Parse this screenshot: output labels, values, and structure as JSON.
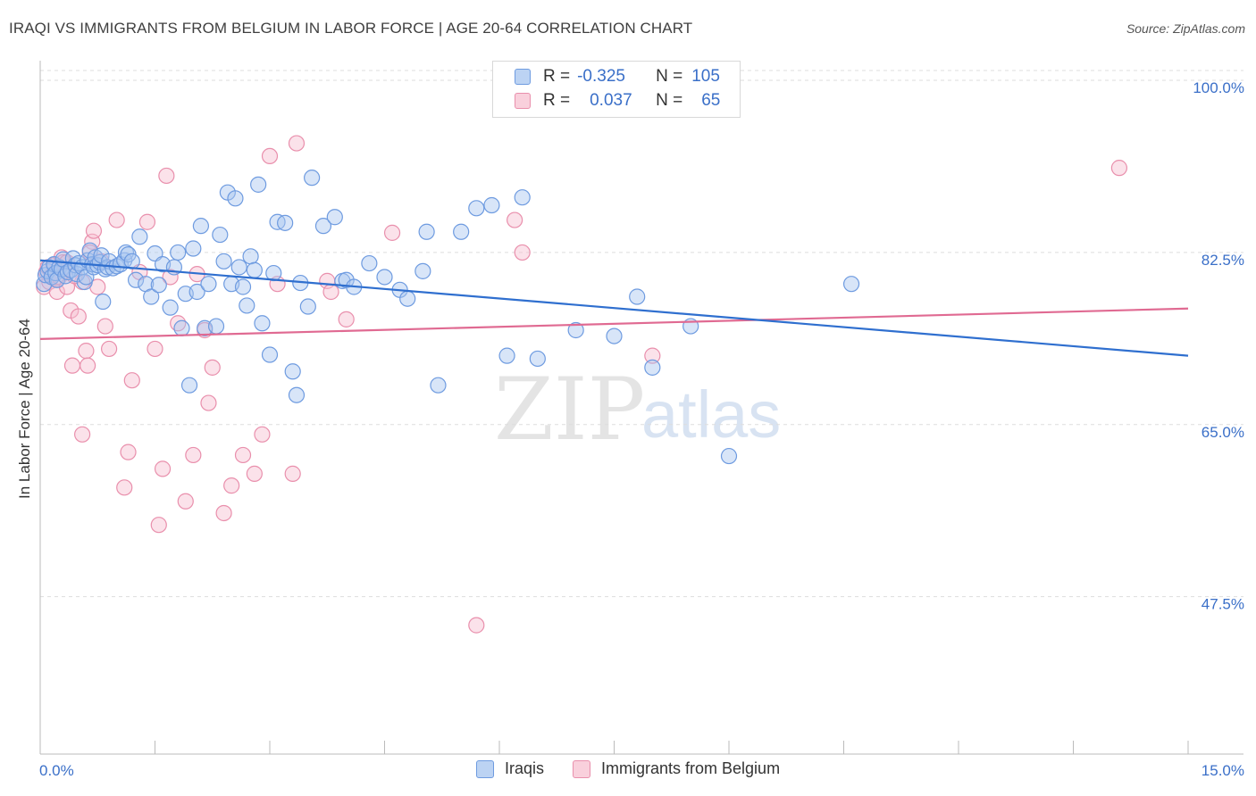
{
  "header": {
    "title": "IRAQI VS IMMIGRANTS FROM BELGIUM IN LABOR FORCE | AGE 20-64 CORRELATION CHART",
    "source": "Source: ZipAtlas.com"
  },
  "legend_top": {
    "rows": [
      {
        "r_label": "R =",
        "r_value": "-0.325",
        "n_label": "N =",
        "n_value": "105"
      },
      {
        "r_label": "R =",
        "r_value": "0.037",
        "n_label": "N =",
        "n_value": "65"
      }
    ]
  },
  "legend_bottom": {
    "items": [
      "Iraqis",
      "Immigrants from Belgium"
    ]
  },
  "watermark": {
    "zip": "ZIP",
    "atlas": "atlas"
  },
  "colors": {
    "iraqi_fill": "#a9c6ef",
    "iraqi_stroke": "#6e9be0",
    "iraqi_line": "#2f6fcf",
    "belgium_fill": "#f6bfd0",
    "belgium_stroke": "#e98fac",
    "belgium_line": "#e06a92",
    "tick_text": "#3a6fc8",
    "grid": "#dddddd"
  },
  "chart_data": {
    "type": "scatter",
    "title": "IRAQI VS IMMIGRANTS FROM BELGIUM IN LABOR FORCE | AGE 20-64 CORRELATION CHART",
    "xlabel": "",
    "ylabel": "In Labor Force | Age 20-64",
    "xlim": [
      0,
      15
    ],
    "ylim": [
      31.5,
      102
    ],
    "x_tick_labels": [
      "0.0%",
      "15.0%"
    ],
    "y_ticks": [
      100,
      82.5,
      65,
      47.5
    ],
    "y_tick_labels": [
      "100.0%",
      "82.5%",
      "65.0%",
      "47.5%"
    ],
    "series": [
      {
        "name": "Iraqis",
        "r": -0.325,
        "n": 105,
        "trend": {
          "x": [
            0,
            15
          ],
          "y": [
            81.7,
            72.0
          ]
        },
        "points": [
          [
            0.05,
            79.3
          ],
          [
            0.07,
            80.2
          ],
          [
            0.1,
            80.6
          ],
          [
            0.12,
            81.0
          ],
          [
            0.15,
            80.0
          ],
          [
            0.18,
            81.3
          ],
          [
            0.2,
            80.4
          ],
          [
            0.22,
            79.7
          ],
          [
            0.25,
            81.0
          ],
          [
            0.28,
            80.8
          ],
          [
            0.3,
            81.8
          ],
          [
            0.33,
            80.1
          ],
          [
            0.36,
            80.5
          ],
          [
            0.4,
            80.7
          ],
          [
            0.43,
            81.9
          ],
          [
            0.46,
            81.2
          ],
          [
            0.48,
            80.3
          ],
          [
            0.5,
            81.4
          ],
          [
            0.55,
            81.0
          ],
          [
            0.58,
            79.5
          ],
          [
            0.6,
            80.0
          ],
          [
            0.62,
            81.7
          ],
          [
            0.65,
            82.7
          ],
          [
            0.68,
            81.3
          ],
          [
            0.7,
            81.0
          ],
          [
            0.72,
            82.0
          ],
          [
            0.75,
            81.2
          ],
          [
            0.78,
            81.5
          ],
          [
            0.8,
            82.2
          ],
          [
            0.82,
            77.5
          ],
          [
            0.85,
            80.8
          ],
          [
            0.88,
            81.0
          ],
          [
            0.9,
            81.6
          ],
          [
            0.95,
            80.9
          ],
          [
            1.0,
            81.1
          ],
          [
            1.05,
            81.3
          ],
          [
            1.1,
            81.7
          ],
          [
            1.12,
            82.5
          ],
          [
            1.15,
            82.3
          ],
          [
            1.2,
            81.6
          ],
          [
            1.25,
            79.7
          ],
          [
            1.3,
            84.1
          ],
          [
            1.38,
            79.3
          ],
          [
            1.45,
            78.0
          ],
          [
            1.5,
            82.4
          ],
          [
            1.55,
            79.2
          ],
          [
            1.6,
            81.3
          ],
          [
            1.7,
            76.9
          ],
          [
            1.75,
            81.0
          ],
          [
            1.8,
            82.5
          ],
          [
            1.85,
            74.8
          ],
          [
            1.9,
            78.3
          ],
          [
            1.95,
            69.0
          ],
          [
            2.0,
            82.9
          ],
          [
            2.05,
            78.5
          ],
          [
            2.1,
            85.2
          ],
          [
            2.15,
            74.8
          ],
          [
            2.2,
            79.3
          ],
          [
            2.3,
            75.0
          ],
          [
            2.35,
            84.3
          ],
          [
            2.4,
            81.6
          ],
          [
            2.45,
            88.6
          ],
          [
            2.5,
            79.3
          ],
          [
            2.55,
            88.0
          ],
          [
            2.6,
            81.0
          ],
          [
            2.65,
            79.0
          ],
          [
            2.7,
            77.1
          ],
          [
            2.75,
            82.1
          ],
          [
            2.8,
            80.7
          ],
          [
            2.85,
            89.4
          ],
          [
            2.9,
            75.3
          ],
          [
            3.0,
            72.1
          ],
          [
            3.05,
            80.4
          ],
          [
            3.1,
            85.6
          ],
          [
            3.2,
            85.5
          ],
          [
            3.3,
            70.4
          ],
          [
            3.35,
            68.0
          ],
          [
            3.4,
            79.4
          ],
          [
            3.5,
            77.0
          ],
          [
            3.55,
            90.1
          ],
          [
            3.7,
            85.2
          ],
          [
            3.85,
            86.1
          ],
          [
            3.95,
            79.6
          ],
          [
            4.0,
            79.7
          ],
          [
            4.1,
            79.0
          ],
          [
            4.3,
            81.4
          ],
          [
            4.5,
            80.0
          ],
          [
            4.7,
            78.7
          ],
          [
            4.8,
            77.8
          ],
          [
            5.0,
            80.6
          ],
          [
            5.05,
            84.6
          ],
          [
            5.2,
            69.0
          ],
          [
            5.5,
            84.6
          ],
          [
            5.7,
            87.0
          ],
          [
            5.9,
            87.3
          ],
          [
            6.1,
            72.0
          ],
          [
            6.3,
            88.1
          ],
          [
            6.5,
            71.7
          ],
          [
            7.0,
            74.6
          ],
          [
            7.5,
            74.0
          ],
          [
            7.8,
            78.0
          ],
          [
            8.0,
            70.8
          ],
          [
            8.5,
            75.0
          ],
          [
            9.0,
            61.8
          ],
          [
            10.6,
            79.3
          ]
        ]
      },
      {
        "name": "Immigrants from Belgium",
        "r": 0.037,
        "n": 65,
        "trend": {
          "x": [
            0,
            15
          ],
          "y": [
            73.7,
            76.8
          ]
        },
        "points": [
          [
            0.05,
            79.0
          ],
          [
            0.08,
            80.5
          ],
          [
            0.1,
            81.0
          ],
          [
            0.12,
            79.5
          ],
          [
            0.15,
            80.2
          ],
          [
            0.18,
            81.2
          ],
          [
            0.2,
            79.8
          ],
          [
            0.22,
            78.5
          ],
          [
            0.25,
            80.0
          ],
          [
            0.28,
            82.0
          ],
          [
            0.3,
            81.5
          ],
          [
            0.33,
            80.8
          ],
          [
            0.35,
            79.0
          ],
          [
            0.4,
            76.6
          ],
          [
            0.42,
            71.0
          ],
          [
            0.5,
            76.0
          ],
          [
            0.55,
            64.0
          ],
          [
            0.6,
            72.5
          ],
          [
            0.62,
            71.0
          ],
          [
            0.68,
            83.6
          ],
          [
            0.7,
            84.7
          ],
          [
            0.75,
            79.0
          ],
          [
            0.8,
            81.6
          ],
          [
            0.85,
            75.0
          ],
          [
            0.9,
            72.7
          ],
          [
            1.0,
            85.8
          ],
          [
            1.1,
            58.6
          ],
          [
            1.15,
            62.2
          ],
          [
            1.2,
            69.5
          ],
          [
            1.3,
            80.5
          ],
          [
            1.4,
            85.6
          ],
          [
            1.5,
            72.7
          ],
          [
            1.55,
            54.8
          ],
          [
            1.6,
            60.5
          ],
          [
            1.65,
            90.3
          ],
          [
            1.8,
            75.3
          ],
          [
            1.9,
            57.2
          ],
          [
            2.0,
            61.9
          ],
          [
            2.05,
            80.3
          ],
          [
            2.15,
            74.6
          ],
          [
            2.2,
            67.2
          ],
          [
            2.25,
            70.8
          ],
          [
            2.4,
            56.0
          ],
          [
            2.5,
            58.8
          ],
          [
            2.65,
            61.9
          ],
          [
            2.8,
            60.0
          ],
          [
            2.9,
            64.0
          ],
          [
            3.0,
            92.3
          ],
          [
            3.1,
            79.3
          ],
          [
            3.3,
            60.0
          ],
          [
            3.35,
            93.6
          ],
          [
            3.75,
            79.6
          ],
          [
            3.8,
            78.5
          ],
          [
            4.0,
            75.7
          ],
          [
            4.6,
            84.5
          ],
          [
            5.7,
            44.6
          ],
          [
            6.2,
            85.8
          ],
          [
            6.3,
            82.5
          ],
          [
            8.0,
            72.0
          ],
          [
            14.1,
            91.1
          ],
          [
            0.55,
            79.5
          ],
          [
            0.35,
            81.5
          ],
          [
            0.45,
            80.1
          ],
          [
            0.65,
            82.5
          ],
          [
            1.7,
            80.0
          ]
        ]
      }
    ]
  }
}
